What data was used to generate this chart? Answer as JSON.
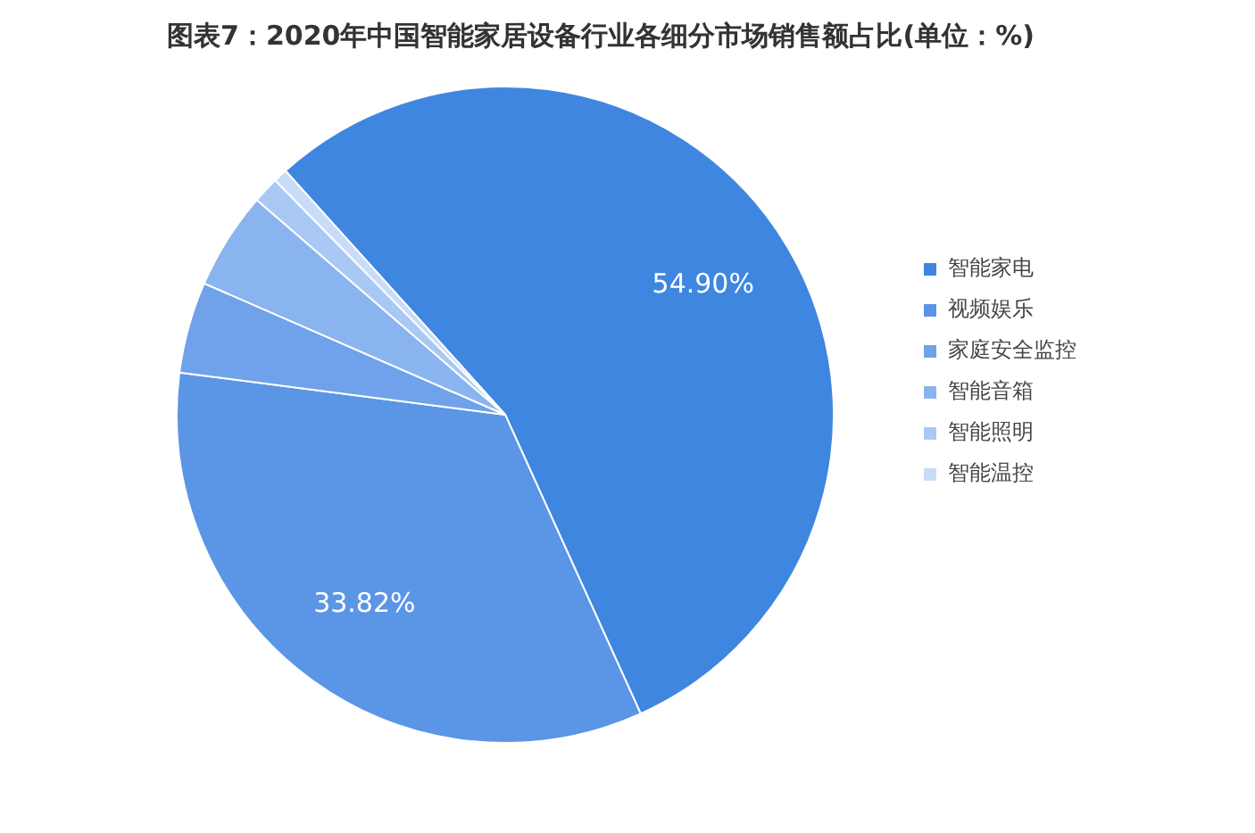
{
  "chart_data": {
    "type": "pie",
    "title": "图表7：2020年中国智能家居设备行业各细分市场销售额占比(单位：%)",
    "categories": [
      "智能家电",
      "视频娱乐",
      "家庭安全监控",
      "智能音箱",
      "智能照明",
      "智能温控"
    ],
    "values": [
      54.9,
      33.82,
      4.5,
      4.8,
      1.3,
      0.68
    ],
    "colors": [
      "#3f86e0",
      "#5b95e6",
      "#6fa2ea",
      "#8ab4ef",
      "#a9c8f4",
      "#c8dcf8"
    ],
    "value_labels": [
      "54.90%",
      "33.82%",
      null,
      null,
      null,
      null
    ],
    "legend": "right"
  }
}
